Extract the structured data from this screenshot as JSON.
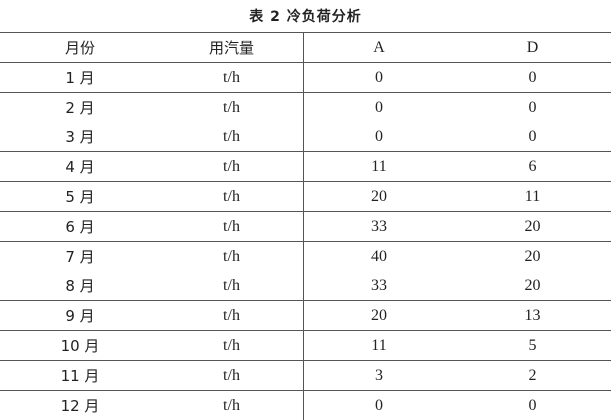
{
  "title": "表 2  冷负荷分析",
  "headers": [
    "月份",
    "用汽量",
    "A",
    "D"
  ],
  "rows": [
    [
      "1 月",
      "t/h",
      "0",
      "0"
    ],
    [
      "2 月",
      "t/h",
      "0",
      "0"
    ],
    [
      "3 月",
      "t/h",
      "0",
      "0"
    ],
    [
      "4 月",
      "t/h",
      "11",
      "6"
    ],
    [
      "5 月",
      "t/h",
      "20",
      "11"
    ],
    [
      "6 月",
      "t/h",
      "33",
      "20"
    ],
    [
      "7 月",
      "t/h",
      "40",
      "20"
    ],
    [
      "8 月",
      "t/h",
      "33",
      "20"
    ],
    [
      "9 月",
      "t/h",
      "20",
      "13"
    ],
    [
      "10 月",
      "t/h",
      "11",
      "5"
    ],
    [
      "11 月",
      "t/h",
      "3",
      "2"
    ],
    [
      "12 月",
      "t/h",
      "0",
      "0"
    ]
  ]
}
